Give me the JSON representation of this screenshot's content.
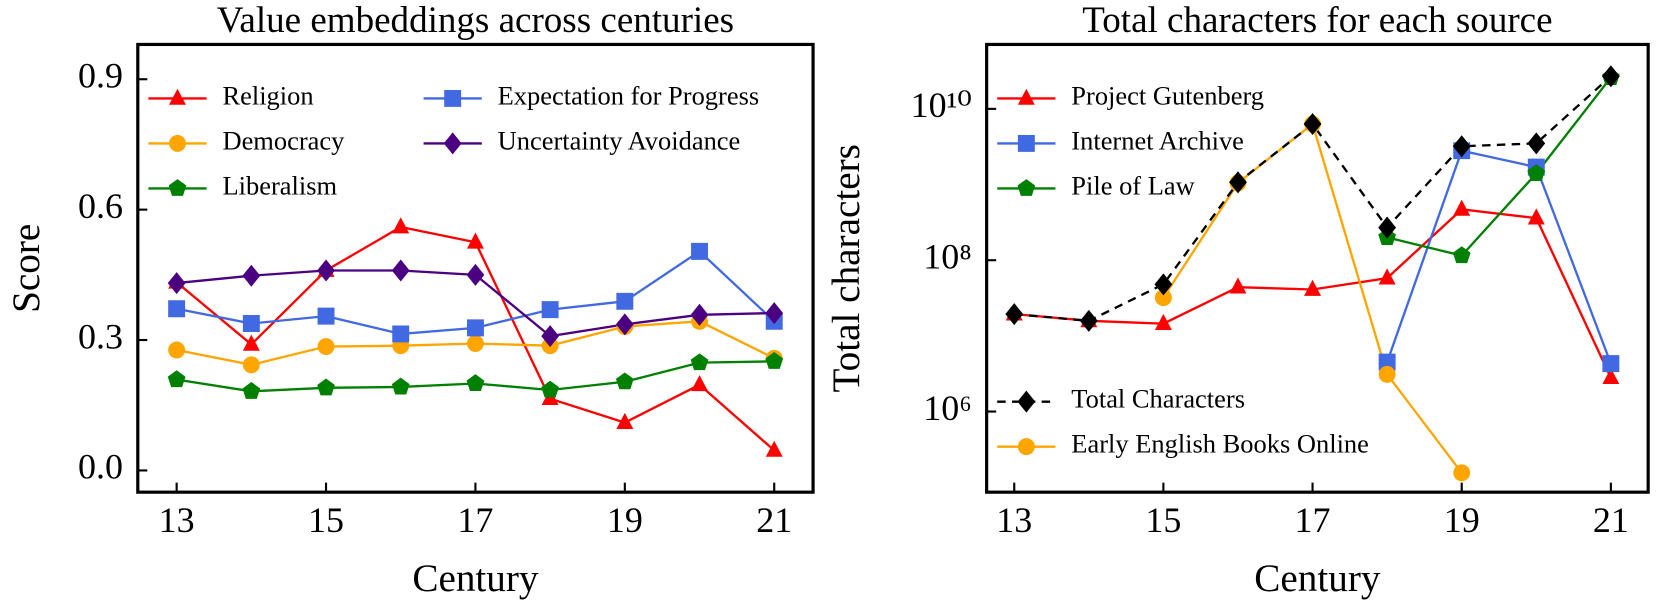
{
  "chart_data": [
    {
      "type": "line",
      "title": "Value embeddings across centuries",
      "xlabel": "Century",
      "ylabel": "Score",
      "x": [
        13,
        14,
        15,
        16,
        17,
        18,
        19,
        20,
        21
      ],
      "xlim": [
        12.48,
        21.52
      ],
      "xticks": [
        13,
        15,
        17,
        19,
        21
      ],
      "ylim": [
        -0.05,
        0.98
      ],
      "yticks": [
        {
          "value": 0,
          "label": "0.0"
        },
        0.3,
        0.6,
        0.9
      ],
      "yscale": "linear",
      "legend": "upper left",
      "legend_ncol": 2,
      "series": [
        {
          "name": "Religion",
          "color": "#ff0000",
          "marker": "triangle",
          "values": [
            0.433,
            0.29,
            0.46,
            0.56,
            0.525,
            0.165,
            0.11,
            0.197,
            0.046
          ]
        },
        {
          "name": "Democracy",
          "color": "#ffa500",
          "marker": "circle",
          "values": [
            0.277,
            0.243,
            0.285,
            0.287,
            0.292,
            0.287,
            0.331,
            0.343,
            0.258
          ]
        },
        {
          "name": "Liberalism",
          "color": "#008000",
          "marker": "pentagon",
          "values": [
            0.209,
            0.182,
            0.19,
            0.192,
            0.2,
            0.185,
            0.204,
            0.248,
            0.251
          ]
        },
        {
          "name": "Expectation for Progress",
          "color": "#4169e1",
          "marker": "square",
          "values": [
            0.372,
            0.338,
            0.355,
            0.314,
            0.328,
            0.37,
            0.389,
            0.504,
            0.343
          ]
        },
        {
          "name": "Uncertainty Avoidance",
          "color": "#4b0082",
          "marker": "diamond",
          "values": [
            0.431,
            0.448,
            0.46,
            0.46,
            0.45,
            0.309,
            0.336,
            0.358,
            0.362
          ]
        }
      ]
    },
    {
      "type": "line",
      "title": "Total characters for each source",
      "xlabel": "Century",
      "ylabel": "Total characters",
      "x": [
        13,
        14,
        15,
        16,
        17,
        18,
        19,
        20,
        21
      ],
      "xlim": [
        12.63,
        21.5
      ],
      "xticks": [
        13,
        15,
        17,
        19,
        21
      ],
      "ylim": [
        86000,
        71000000000
      ],
      "yscale": "log",
      "yticks": [
        {
          "value": 1000000,
          "label": "10⁶"
        },
        {
          "value": 100000000,
          "label": "10⁸"
        },
        {
          "value": 10000000000,
          "label": "10¹⁰"
        }
      ],
      "legend_ncol": 1,
      "series": [
        {
          "name": "Project Gutenberg",
          "color": "#ff0000",
          "marker": "triangle",
          "legend": "upper left",
          "values": [
            19400000,
            15800000,
            14500000,
            44000000,
            41000000,
            58000000,
            470000000,
            360000000,
            2800000
          ]
        },
        {
          "name": "Internet Archive",
          "color": "#4169e1",
          "marker": "square",
          "legend": "upper left",
          "values": [
            null,
            null,
            null,
            null,
            null,
            4500000,
            2800000000,
            1700000000,
            4300000
          ]
        },
        {
          "name": "Pile of Law",
          "color": "#008000",
          "marker": "pentagon",
          "legend": "upper left",
          "values": [
            null,
            null,
            null,
            null,
            null,
            200000000,
            115000000,
            1400000000,
            26000000000
          ]
        },
        {
          "name": "Early English Books Online",
          "color": "#ffa500",
          "marker": "circle",
          "legend": "lower left",
          "legend_order": 2,
          "values": [
            null,
            null,
            32000000,
            1050000000,
            6300000000,
            3100000,
            155000,
            null,
            null
          ]
        },
        {
          "name": "Total Characters",
          "color": "#000000",
          "marker": "diamond",
          "linestyle": "dashed",
          "legend": "lower left",
          "legend_order": 1,
          "values": [
            19400000,
            15800000,
            48000000,
            1070000000,
            6300000000,
            270000000,
            3200000000,
            3500000000,
            27000000000
          ]
        }
      ]
    }
  ]
}
